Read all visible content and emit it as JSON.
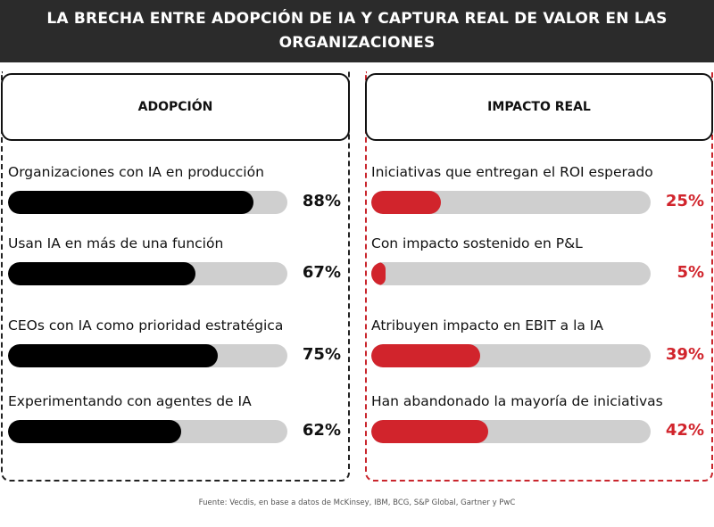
{
  "header": {
    "title": "LA BRECHA ENTRE ADOPCIÓN DE IA Y CAPTURA REAL DE VALOR EN LAS ORGANIZACIONES"
  },
  "colors": {
    "header_bg": "#2b2b2b",
    "adoption_bar": "#000000",
    "impact_bar": "#d1242c",
    "track": "#cfcfcf"
  },
  "chart_data": [
    {
      "type": "bar",
      "orientation": "horizontal",
      "title": "ADOPCIÓN",
      "categories": [
        "Organizaciones con IA en producción",
        "Usan IA en más de una función",
        "CEOs con IA como prioridad estratégica",
        "Experimentando con agentes de IA"
      ],
      "values": [
        88,
        67,
        75,
        62
      ],
      "value_labels": [
        "88%",
        "67%",
        "75%",
        "62%"
      ],
      "xlim": [
        0,
        100
      ],
      "unit": "%"
    },
    {
      "type": "bar",
      "orientation": "horizontal",
      "title": "IMPACTO REAL",
      "categories": [
        "Iniciativas que entregan el ROI esperado",
        "Con impacto sostenido en P&L",
        "Atribuyen impacto en EBIT a la IA",
        "Han abandonado la mayoría de iniciativas"
      ],
      "values": [
        25,
        5,
        39,
        42
      ],
      "value_labels": [
        "25%",
        "5%",
        "39%",
        "42%"
      ],
      "xlim": [
        0,
        100
      ],
      "unit": "%"
    }
  ],
  "footer": {
    "source": "Fuente: Vecdis, en base a datos de McKinsey, IBM, BCG, S&P Global, Gartner y PwC"
  }
}
